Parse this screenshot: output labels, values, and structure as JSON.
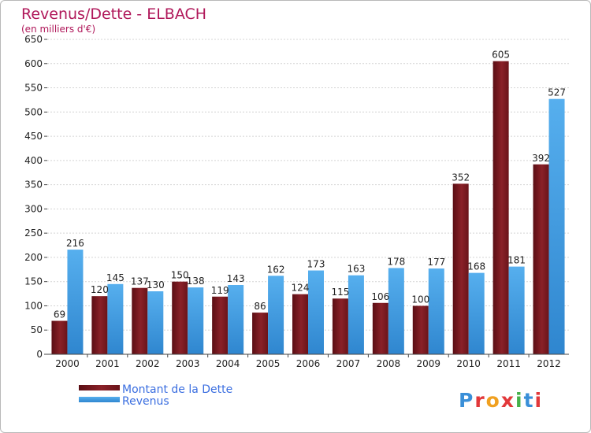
{
  "chart_data": {
    "type": "bar",
    "title": "Revenus/Dette - ELBACH",
    "subtitle": "(en milliers d'€)",
    "categories": [
      "2000",
      "2001",
      "2002",
      "2003",
      "2004",
      "2005",
      "2006",
      "2007",
      "2008",
      "2009",
      "2010",
      "2011",
      "2012"
    ],
    "series": [
      {
        "name": "Montant de la Dette",
        "color": "#7a1a20",
        "values": [
          69,
          120,
          137,
          150,
          119,
          86,
          124,
          115,
          106,
          100,
          352,
          605,
          392
        ]
      },
      {
        "name": "Revenus",
        "color": "#3f9ae0",
        "values": [
          216,
          145,
          130,
          138,
          143,
          162,
          173,
          163,
          178,
          177,
          168,
          181,
          527
        ]
      }
    ],
    "ylim": [
      0,
      650
    ],
    "yticks": [
      0,
      50,
      100,
      150,
      200,
      250,
      300,
      350,
      400,
      450,
      500,
      550,
      600,
      650
    ],
    "grid": true,
    "legend_position": "bottom-left",
    "colors": {
      "title": "#b0185a",
      "legend_text": "#3a6ee0"
    }
  },
  "logo": {
    "text": "Proxiti"
  }
}
